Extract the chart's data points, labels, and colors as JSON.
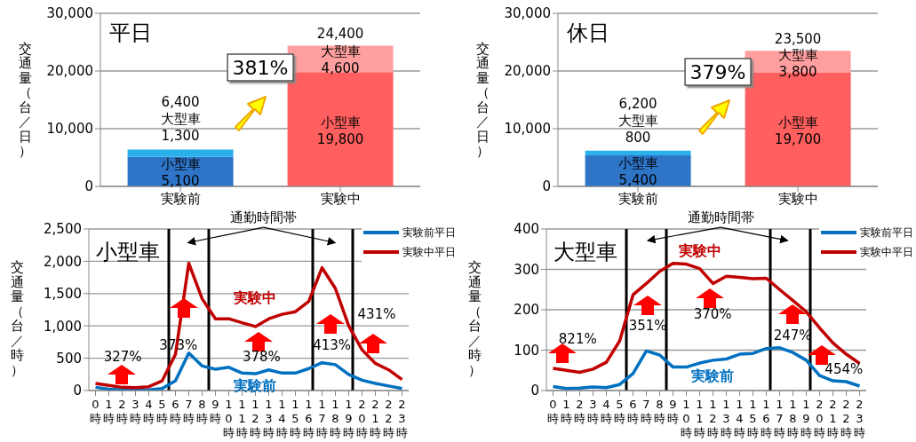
{
  "chart_data": [
    {
      "type": "bar",
      "title": "平日",
      "ylabel": "交通量（台／日）",
      "categories": [
        "実験前",
        "実験中"
      ],
      "stacked": true,
      "series": [
        {
          "name": "小型車",
          "colors": [
            "#2e75c8",
            "#ff5f5f"
          ],
          "values": [
            5100,
            19800
          ],
          "value_labels": [
            "5,100",
            "19,800"
          ]
        },
        {
          "name": "大型車",
          "colors": [
            "#2ab0ea",
            "#ff9e9e"
          ],
          "values": [
            1300,
            4600
          ],
          "value_labels": [
            "1,300",
            "4,600"
          ]
        }
      ],
      "totals": [
        "6,400",
        "24,400"
      ],
      "ylim": [
        0,
        30000
      ],
      "yticks": [
        0,
        {
          "value": 10000,
          "label": "10,000"
        },
        {
          "value": 20000,
          "label": "20,000"
        },
        {
          "value": 30000,
          "label": "30,000"
        }
      ],
      "grid": "y",
      "annotations": [
        "381%"
      ]
    },
    {
      "type": "bar",
      "title": "休日",
      "ylabel": "交通量（台／日）",
      "categories": [
        "実験前",
        "実験中"
      ],
      "stacked": true,
      "series": [
        {
          "name": "小型車",
          "colors": [
            "#2e75c8",
            "#ff5f5f"
          ],
          "values": [
            5400,
            19700
          ],
          "value_labels": [
            "5,400",
            "19,700"
          ]
        },
        {
          "name": "大型車",
          "colors": [
            "#2ab0ea",
            "#ff9e9e"
          ],
          "values": [
            800,
            3800
          ],
          "value_labels": [
            "800",
            "3,800"
          ]
        }
      ],
      "totals": [
        "6,200",
        "23,500"
      ],
      "ylim": [
        0,
        30000
      ],
      "yticks": [
        0,
        {
          "value": 10000,
          "label": "10,000"
        },
        {
          "value": 20000,
          "label": "20,000"
        },
        {
          "value": 30000,
          "label": "30,000"
        }
      ],
      "grid": "y",
      "annotations": [
        "379%"
      ]
    },
    {
      "type": "line",
      "title": "小型車",
      "ylabel": "交通量（台／時）",
      "x": [
        0,
        1,
        2,
        3,
        4,
        5,
        6,
        7,
        8,
        9,
        10,
        11,
        12,
        13,
        14,
        15,
        16,
        17,
        18,
        19,
        20,
        21,
        22,
        23
      ],
      "series": [
        {
          "name": "実験前平日",
          "color": "#0070c0",
          "values": [
            50,
            20,
            10,
            5,
            10,
            30,
            150,
            580,
            380,
            330,
            360,
            270,
            260,
            320,
            270,
            270,
            340,
            430,
            400,
            250,
            160,
            110,
            70,
            30
          ]
        },
        {
          "name": "実験中平日",
          "color": "#c00000",
          "values": [
            110,
            80,
            50,
            45,
            60,
            150,
            560,
            1970,
            1420,
            1110,
            1110,
            1050,
            990,
            1110,
            1180,
            1220,
            1380,
            1900,
            1580,
            1000,
            630,
            420,
            320,
            170
          ]
        }
      ],
      "xlim": [
        -0.5,
        23.5
      ],
      "xticks": [
        {
          "value": 0,
          "label": "0時"
        },
        {
          "value": 1,
          "label": "1時"
        },
        {
          "value": 2,
          "label": "2時"
        },
        {
          "value": 3,
          "label": "3時"
        },
        {
          "value": 4,
          "label": "4時"
        },
        {
          "value": 5,
          "label": "5時"
        },
        {
          "value": 6,
          "label": "6時"
        },
        {
          "value": 7,
          "label": "7時"
        },
        {
          "value": 8,
          "label": "8時"
        },
        {
          "value": 9,
          "label": "9時"
        },
        {
          "value": 10,
          "label": "10時"
        },
        {
          "value": 11,
          "label": "11時"
        },
        {
          "value": 12,
          "label": "12時"
        },
        {
          "value": 13,
          "label": "13時"
        },
        {
          "value": 14,
          "label": "14時"
        },
        {
          "value": 15,
          "label": "15時"
        },
        {
          "value": 16,
          "label": "16時"
        },
        {
          "value": 17,
          "label": "17時"
        },
        {
          "value": 18,
          "label": "18時"
        },
        {
          "value": 19,
          "label": "19時"
        },
        {
          "value": 20,
          "label": "20時"
        },
        {
          "value": 21,
          "label": "21時"
        },
        {
          "value": 22,
          "label": "22時"
        },
        {
          "value": 23,
          "label": "23時"
        }
      ],
      "ylim": [
        0,
        2500
      ],
      "yticks": [
        0,
        500,
        {
          "value": 1000,
          "label": "1,000"
        },
        {
          "value": 1500,
          "label": "1,500"
        },
        {
          "value": 2000,
          "label": "2,000"
        },
        {
          "value": 2500,
          "label": "2,500"
        }
      ],
      "grid": "y",
      "legend": "top right",
      "marker": "none",
      "line_style": "solid",
      "ref_lines": [
        {
          "axis": "x",
          "value": 5.5,
          "color": "#000000"
        },
        {
          "axis": "x",
          "value": 8.5,
          "color": "#000000"
        },
        {
          "axis": "x",
          "value": 16.3,
          "color": "#000000"
        },
        {
          "axis": "x",
          "value": 19.3,
          "color": "#000000"
        }
      ],
      "annotations": [
        "通勤時間帯",
        "実験中",
        "実験前",
        "327%",
        "373%",
        "378%",
        "413%",
        "431%"
      ]
    },
    {
      "type": "line",
      "title": "大型車",
      "ylabel": "交通量（台／時）",
      "x": [
        0,
        1,
        2,
        3,
        4,
        5,
        6,
        7,
        8,
        9,
        10,
        11,
        12,
        13,
        14,
        15,
        16,
        17,
        18,
        19,
        20,
        21,
        22,
        23
      ],
      "series": [
        {
          "name": "実験前平日",
          "color": "#0070c0",
          "values": [
            10,
            5,
            6,
            9,
            7,
            15,
            42,
            98,
            88,
            58,
            58,
            68,
            75,
            78,
            90,
            92,
            104,
            106,
            94,
            75,
            37,
            24,
            22,
            11
          ]
        },
        {
          "name": "実験中平日",
          "color": "#c00000",
          "values": [
            55,
            50,
            45,
            53,
            70,
            123,
            237,
            265,
            295,
            315,
            313,
            302,
            265,
            283,
            280,
            277,
            278,
            250,
            223,
            195,
            155,
            118,
            90,
            67
          ]
        }
      ],
      "xlim": [
        -0.5,
        23.5
      ],
      "xticks": [
        {
          "value": 0,
          "label": "0時"
        },
        {
          "value": 1,
          "label": "1時"
        },
        {
          "value": 2,
          "label": "2時"
        },
        {
          "value": 3,
          "label": "3時"
        },
        {
          "value": 4,
          "label": "4時"
        },
        {
          "value": 5,
          "label": "5時"
        },
        {
          "value": 6,
          "label": "6時"
        },
        {
          "value": 7,
          "label": "7時"
        },
        {
          "value": 8,
          "label": "8時"
        },
        {
          "value": 9,
          "label": "9時"
        },
        {
          "value": 10,
          "label": "10時"
        },
        {
          "value": 11,
          "label": "11時"
        },
        {
          "value": 12,
          "label": "12時"
        },
        {
          "value": 13,
          "label": "13時"
        },
        {
          "value": 14,
          "label": "14時"
        },
        {
          "value": 15,
          "label": "15時"
        },
        {
          "value": 16,
          "label": "16時"
        },
        {
          "value": 17,
          "label": "17時"
        },
        {
          "value": 18,
          "label": "18時"
        },
        {
          "value": 19,
          "label": "19時"
        },
        {
          "value": 20,
          "label": "20時"
        },
        {
          "value": 21,
          "label": "21時"
        },
        {
          "value": 22,
          "label": "22時"
        },
        {
          "value": 23,
          "label": "23時"
        }
      ],
      "ylim": [
        0,
        400
      ],
      "yticks": [
        0,
        100,
        200,
        300,
        400
      ],
      "grid": "y",
      "legend": "top right",
      "marker": "none",
      "line_style": "solid",
      "ref_lines": [
        {
          "axis": "x",
          "value": 5.5,
          "color": "#000000"
        },
        {
          "axis": "x",
          "value": 8.5,
          "color": "#000000"
        },
        {
          "axis": "x",
          "value": 16.3,
          "color": "#000000"
        },
        {
          "axis": "x",
          "value": 19.3,
          "color": "#000000"
        }
      ],
      "annotations": [
        "通勤時間帯",
        "実験中",
        "実験前",
        "821%",
        "351%",
        "370%",
        "247%",
        "454%"
      ]
    }
  ]
}
